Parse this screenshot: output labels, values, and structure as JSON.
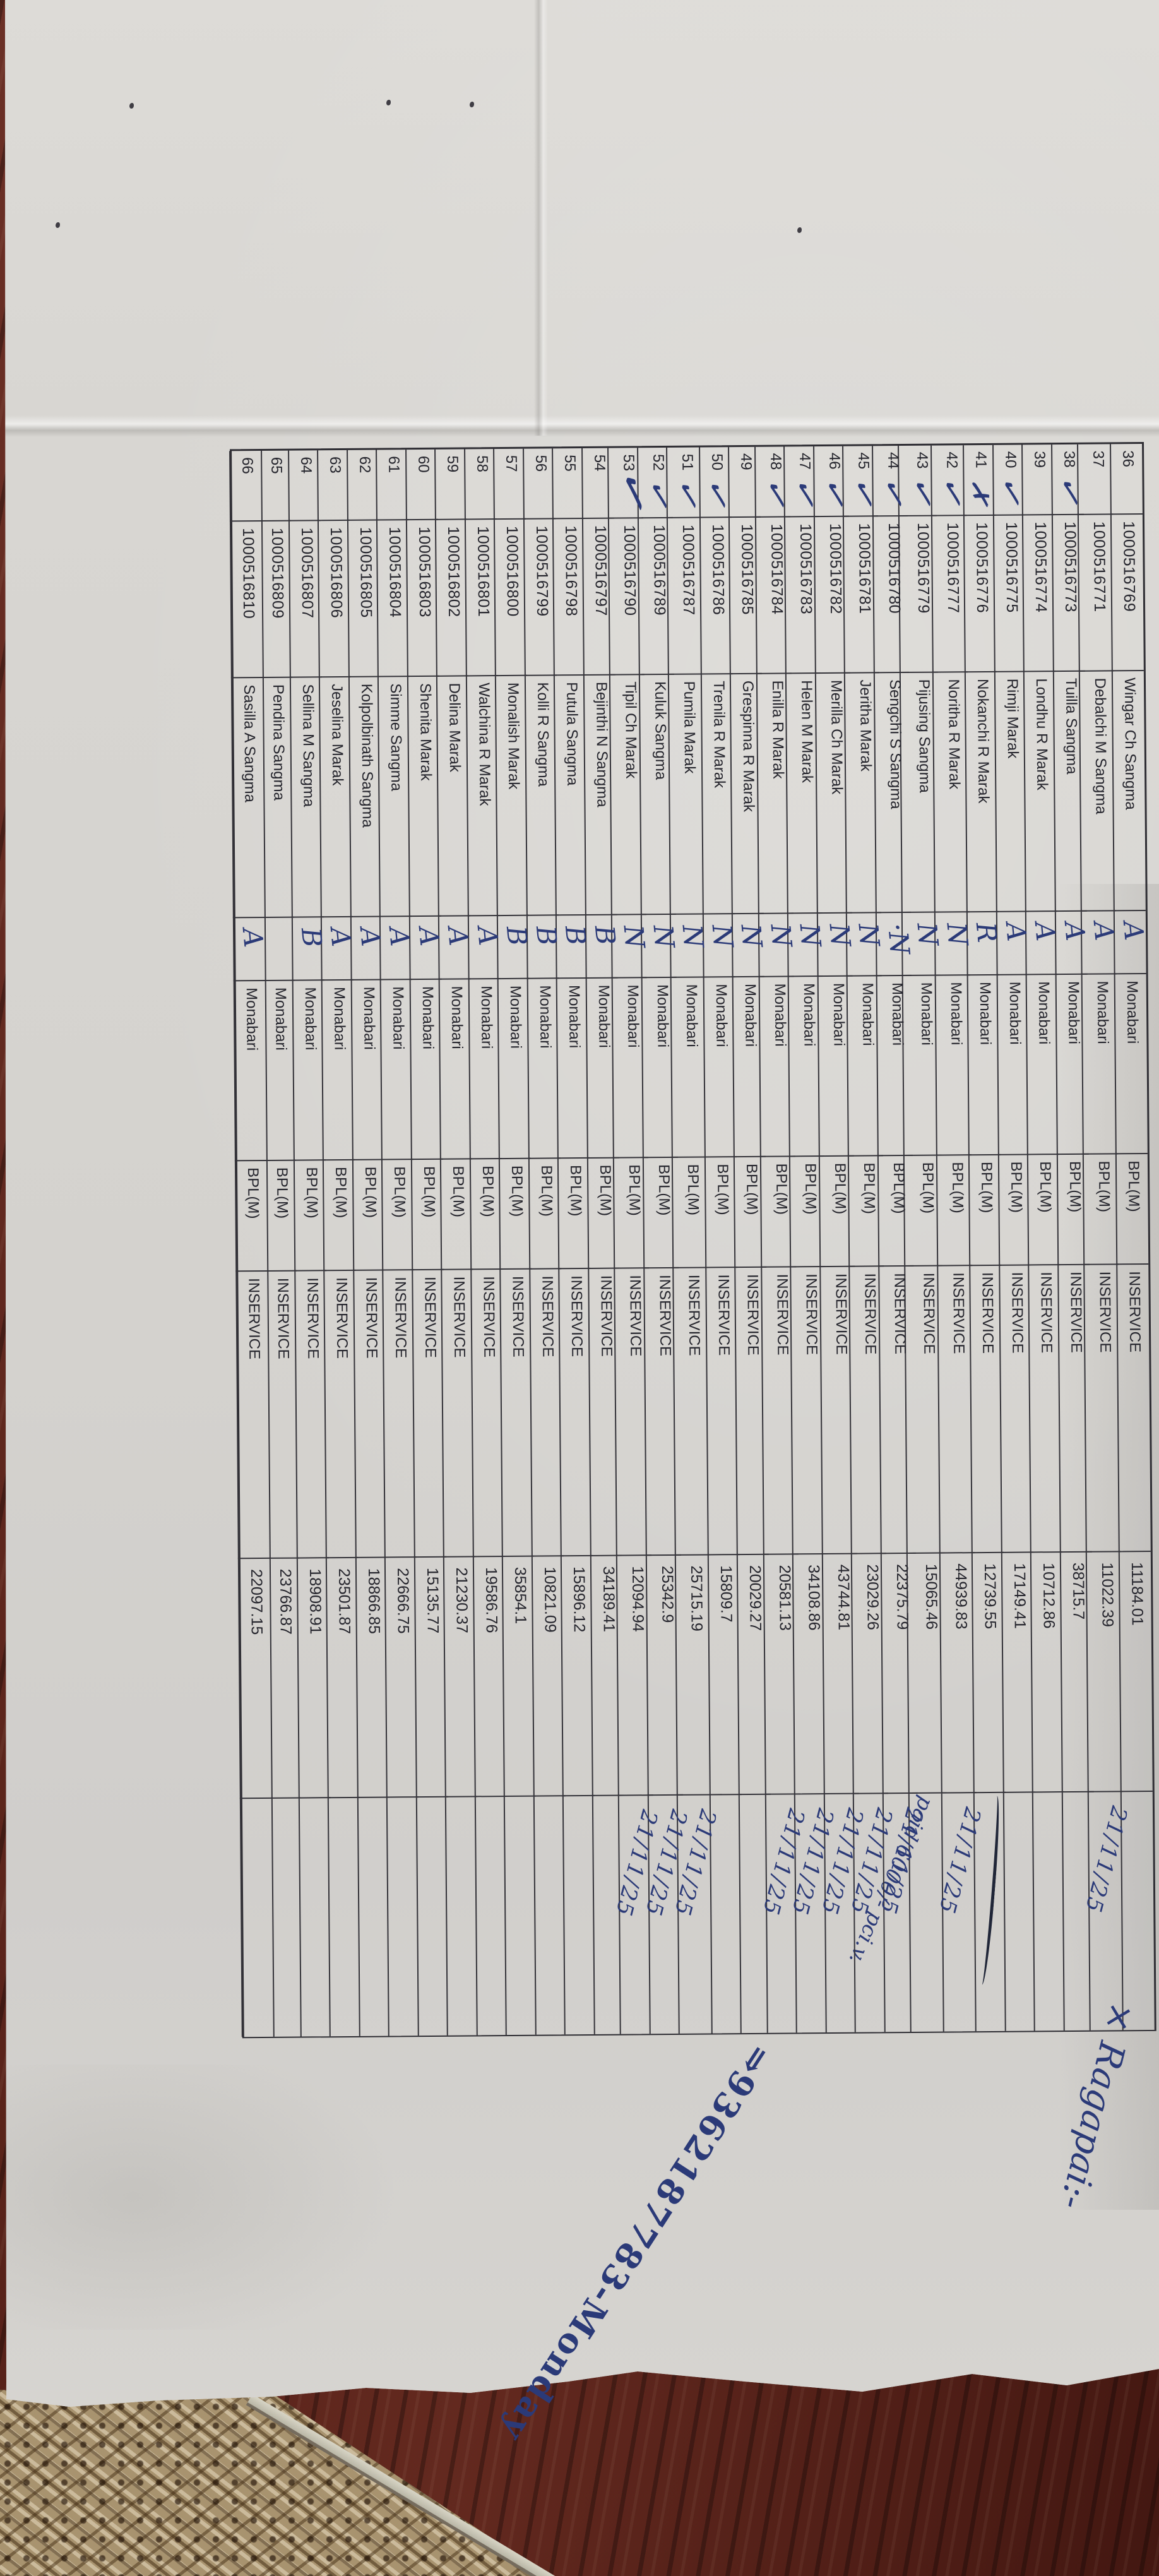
{
  "table": {
    "rows": [
      {
        "sl": "36",
        "id": "1000516769",
        "name": "Wingar Ch Sangma",
        "letter": "A",
        "center": "Monabari",
        "category": "BPL(M)",
        "status": "INSERVICE",
        "amount": "11184.01",
        "mark": "",
        "note": ""
      },
      {
        "sl": "37",
        "id": "1000516771",
        "name": "Debalchi M Sangma",
        "letter": "A",
        "center": "Monabari",
        "category": "BPL(M)",
        "status": "INSERVICE",
        "amount": "11022.39",
        "mark": "",
        "note": "date"
      },
      {
        "sl": "38",
        "id": "1000516773",
        "name": "Tuilla Sangma",
        "letter": "A",
        "center": "Monabari",
        "category": "BPL(M)",
        "status": "INSERVICE",
        "amount": "38715.7",
        "mark": "check",
        "note": ""
      },
      {
        "sl": "39",
        "id": "1000516774",
        "name": "Londhu R Marak",
        "letter": "A",
        "center": "Monabari",
        "category": "BPL(M)",
        "status": "INSERVICE",
        "amount": "10712.86",
        "mark": "",
        "note": ""
      },
      {
        "sl": "40",
        "id": "1000516775",
        "name": "Rimji Marak",
        "letter": "A",
        "center": "Monabari",
        "category": "BPL(M)",
        "status": "INSERVICE",
        "amount": "17149.41",
        "mark": "check",
        "note": ""
      },
      {
        "sl": "41",
        "id": "1000516776",
        "name": "Nokanchi R Marak",
        "letter": "R",
        "center": "Monabari",
        "category": "BPL(M)",
        "status": "INSERVICE",
        "amount": "12739.55",
        "mark": "cross",
        "note": "scratch"
      },
      {
        "sl": "42",
        "id": "1000516777",
        "name": "Noritha R Marak",
        "letter": "N",
        "center": "Monabari",
        "category": "BPL(M)",
        "status": "INSERVICE",
        "amount": "44939.83",
        "mark": "check",
        "note": "date"
      },
      {
        "sl": "43",
        "id": "1000516779",
        "name": "Pijusing Sangma",
        "letter": "N",
        "center": "Monabari",
        "category": "BPL(M)",
        "status": "INSERVICE",
        "amount": "15065.46",
        "mark": "check",
        "note": "paid"
      },
      {
        "sl": "44",
        "id": "1000516780",
        "name": "Sengchi S Sangma",
        "letter": "·N",
        "center": "Monabari",
        "category": "BPL(M)",
        "status": "INSERVICE",
        "amount": "22375.79",
        "mark": "check",
        "note": "date"
      },
      {
        "sl": "45",
        "id": "1000516781",
        "name": "Jeritha Marak",
        "letter": "N",
        "center": "Monabari",
        "category": "BPL(M)",
        "status": "INSERVICE",
        "amount": "23029.26",
        "mark": "check",
        "note": "date"
      },
      {
        "sl": "46",
        "id": "1000516782",
        "name": "Merilla Ch Marak",
        "letter": "N",
        "center": "Monabari",
        "category": "BPL(M)",
        "status": "INSERVICE",
        "amount": "43744.81",
        "mark": "check",
        "note": "date"
      },
      {
        "sl": "47",
        "id": "1000516783",
        "name": "Helen M Marak",
        "letter": "N",
        "center": "Monabari",
        "category": "BPL(M)",
        "status": "INSERVICE",
        "amount": "34108.86",
        "mark": "check",
        "note": "date"
      },
      {
        "sl": "48",
        "id": "1000516784",
        "name": "Enilla R Marak",
        "letter": "N",
        "center": "Monabari",
        "category": "BPL(M)",
        "status": "INSERVICE",
        "amount": "20581.13",
        "mark": "check",
        "note": "date"
      },
      {
        "sl": "49",
        "id": "1000516785",
        "name": "Grespinna R Marak",
        "letter": "N",
        "center": "Monabari",
        "category": "BPL(M)",
        "status": "INSERVICE",
        "amount": "20029.27",
        "mark": "",
        "note": ""
      },
      {
        "sl": "50",
        "id": "1000516786",
        "name": "Trenila R Marak",
        "letter": "N",
        "center": "Monabari",
        "category": "BPL(M)",
        "status": "INSERVICE",
        "amount": "15809.7",
        "mark": "check",
        "note": ""
      },
      {
        "sl": "51",
        "id": "1000516787",
        "name": "Pumila Marak",
        "letter": "N",
        "center": "Monabari",
        "category": "BPL(M)",
        "status": "INSERVICE",
        "amount": "25715.19",
        "mark": "check",
        "note": "date"
      },
      {
        "sl": "52",
        "id": "1000516789",
        "name": "Kuluk Sangma",
        "letter": "N",
        "center": "Monabari",
        "category": "BPL(M)",
        "status": "INSERVICE",
        "amount": "25342.9",
        "mark": "check",
        "note": "date"
      },
      {
        "sl": "53",
        "id": "1000516790",
        "name": "Tipil Ch Marak",
        "letter": "N",
        "center": "Monabari",
        "category": "BPL(M)",
        "status": "INSERVICE",
        "amount": "12094.94",
        "mark": "check-big",
        "note": "date"
      },
      {
        "sl": "54",
        "id": "1000516797",
        "name": "Bejinthi N Sangma",
        "letter": "B",
        "center": "Monabari",
        "category": "BPL(M)",
        "status": "INSERVICE",
        "amount": "34189.41",
        "mark": "",
        "note": ""
      },
      {
        "sl": "55",
        "id": "1000516798",
        "name": "Putula Sangma",
        "letter": "B",
        "center": "Monabari",
        "category": "BPL(M)",
        "status": "INSERVICE",
        "amount": "15896.12",
        "mark": "",
        "note": ""
      },
      {
        "sl": "56",
        "id": "1000516799",
        "name": "Kolli R Sangma",
        "letter": "B",
        "center": "Monabari",
        "category": "BPL(M)",
        "status": "INSERVICE",
        "amount": "10821.09",
        "mark": "",
        "note": ""
      },
      {
        "sl": "57",
        "id": "1000516800",
        "name": "Monalish Marak",
        "letter": "B",
        "center": "Monabari",
        "category": "BPL(M)",
        "status": "INSERVICE",
        "amount": "35854.1",
        "mark": "",
        "note": ""
      },
      {
        "sl": "58",
        "id": "1000516801",
        "name": "Walchina R Marak",
        "letter": "A",
        "center": "Monabari",
        "category": "BPL(M)",
        "status": "INSERVICE",
        "amount": "19586.76",
        "mark": "",
        "note": ""
      },
      {
        "sl": "59",
        "id": "1000516802",
        "name": "Delina Marak",
        "letter": "A",
        "center": "Monabari",
        "category": "BPL(M)",
        "status": "INSERVICE",
        "amount": "21230.37",
        "mark": "",
        "note": ""
      },
      {
        "sl": "60",
        "id": "1000516803",
        "name": "Shenita Marak",
        "letter": "A",
        "center": "Monabari",
        "category": "BPL(M)",
        "status": "INSERVICE",
        "amount": "15135.77",
        "mark": "",
        "note": ""
      },
      {
        "sl": "61",
        "id": "1000516804",
        "name": "Simme Sangma",
        "letter": "A",
        "center": "Monabari",
        "category": "BPL(M)",
        "status": "INSERVICE",
        "amount": "22666.75",
        "mark": "",
        "note": ""
      },
      {
        "sl": "62",
        "id": "1000516805",
        "name": "Kolpolbinath Sangma",
        "letter": "A",
        "center": "Monabari",
        "category": "BPL(M)",
        "status": "INSERVICE",
        "amount": "18866.85",
        "mark": "",
        "note": ""
      },
      {
        "sl": "63",
        "id": "1000516806",
        "name": "Jeselina Marak",
        "letter": "A",
        "center": "Monabari",
        "category": "BPL(M)",
        "status": "INSERVICE",
        "amount": "23501.87",
        "mark": "",
        "note": ""
      },
      {
        "sl": "64",
        "id": "1000516807",
        "name": "Sellina M Sangma",
        "letter": "B",
        "center": "Monabari",
        "category": "BPL(M)",
        "status": "INSERVICE",
        "amount": "18908.91",
        "mark": "",
        "note": ""
      },
      {
        "sl": "65",
        "id": "1000516809",
        "name": "Pendina Sangma",
        "letter": "",
        "center": "Monabari",
        "category": "BPL(M)",
        "status": "INSERVICE",
        "amount": "23766.87",
        "mark": "",
        "note": ""
      },
      {
        "sl": "66",
        "id": "1000516810",
        "name": "Sasilla A Sangma",
        "letter": "A",
        "center": "Monabari",
        "category": "BPL(M)",
        "status": "INSERVICE",
        "amount": "22097.15",
        "mark": "",
        "note": ""
      }
    ]
  },
  "annotations": {
    "check_symbol": "✓",
    "cross_symbol": "✗",
    "date_note": "21/11/25",
    "paid_note": "paid 6000/- pci.v.",
    "margin_note": "× Ragapai:-",
    "phone_note": "⇒9362187783-Monday"
  },
  "colors": {
    "ink_print": "#26262e",
    "ink_pen": "#2b3a78",
    "paper": "#d6d4d0",
    "wood": "#5d2a1f",
    "basket": "#a8936f"
  }
}
